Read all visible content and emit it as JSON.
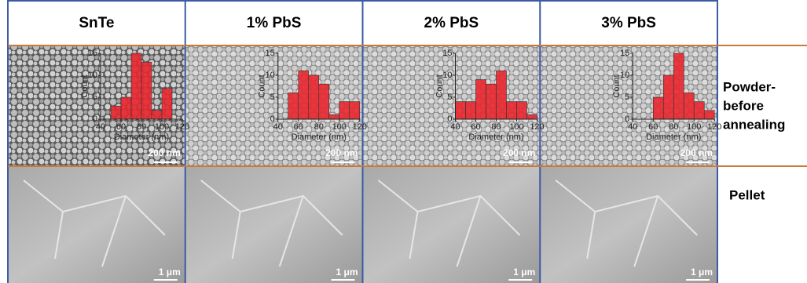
{
  "columns": [
    "SnTe",
    "1% PbS",
    "2% PbS",
    "3% PbS"
  ],
  "row_labels": [
    [
      "Powder-",
      "before",
      "annealing"
    ],
    "Pellet"
  ],
  "scale_bars": [
    "200 nm",
    "1 μm"
  ],
  "chart_data": [
    {
      "type": "histogram",
      "xlabel": "Diameter (nm)",
      "ylabel": "Count",
      "color": "#e8262e",
      "bins": [
        50,
        60,
        70,
        80,
        90,
        100,
        110
      ],
      "values": [
        3,
        5,
        15,
        13,
        2,
        7
      ],
      "xlim": [
        40,
        120
      ],
      "xticks": [
        40,
        60,
        80,
        100,
        120
      ],
      "ylim": [
        0,
        15
      ],
      "yticks": [
        0,
        5,
        10,
        15
      ]
    },
    {
      "type": "histogram",
      "xlabel": "Diameter (nm)",
      "ylabel": "Count",
      "color": "#e8262e",
      "bins": [
        50,
        60,
        70,
        80,
        90,
        100,
        110,
        120
      ],
      "values": [
        6,
        11,
        10,
        8,
        1,
        4,
        4
      ],
      "xlim": [
        40,
        120
      ],
      "xticks": [
        40,
        60,
        80,
        100,
        120
      ],
      "ylim": [
        0,
        15
      ],
      "yticks": [
        0,
        5,
        10,
        15
      ]
    },
    {
      "type": "histogram",
      "xlabel": "Diameter (nm)",
      "ylabel": "Count",
      "color": "#e8262e",
      "bins": [
        40,
        50,
        60,
        70,
        80,
        90,
        100,
        110,
        120
      ],
      "values": [
        4,
        4,
        9,
        8,
        11,
        4,
        4,
        1
      ],
      "xlim": [
        40,
        120
      ],
      "xticks": [
        40,
        60,
        80,
        100,
        120
      ],
      "ylim": [
        0,
        15
      ],
      "yticks": [
        0,
        5,
        10,
        15
      ]
    },
    {
      "type": "histogram",
      "xlabel": "Diameter (nm)",
      "ylabel": "Count",
      "color": "#e8262e",
      "bins": [
        60,
        70,
        80,
        90,
        100,
        110,
        120
      ],
      "values": [
        5,
        10,
        15,
        6,
        4,
        2
      ],
      "xlim": [
        40,
        120
      ],
      "xticks": [
        40,
        60,
        80,
        100,
        120
      ],
      "ylim": [
        0,
        15
      ],
      "yticks": [
        0,
        5,
        10,
        15
      ]
    }
  ]
}
